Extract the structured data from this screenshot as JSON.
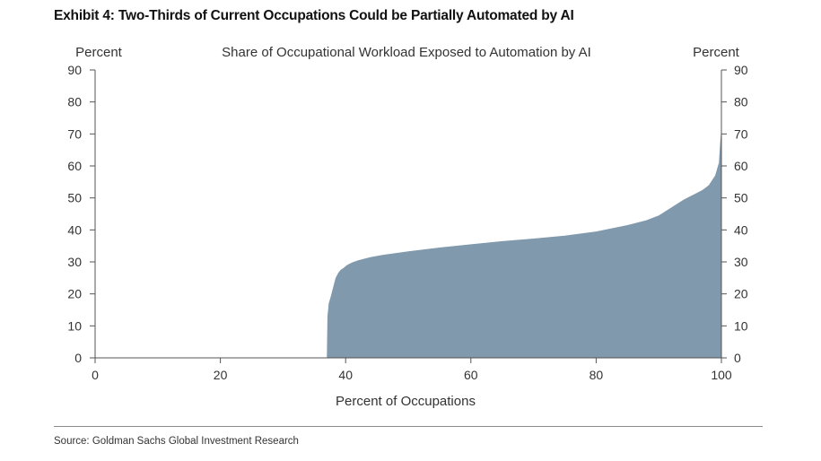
{
  "header": {
    "title": "Exhibit 4: Two-Thirds of Current Occupations Could be Partially Automated by AI"
  },
  "footer": {
    "source": "Source: Goldman Sachs Global Investment Research"
  },
  "colors": {
    "area_fill": "#8099ad",
    "axis": "#555555",
    "text": "#333333",
    "divider": "#8c8c8c"
  },
  "chart_data": {
    "type": "area",
    "title": "Share of Occupational Workload Exposed to Automation by AI",
    "xlabel": "Percent of Occupations",
    "ylabel_left": "Percent",
    "ylabel_right": "Percent",
    "xlim": [
      0,
      100
    ],
    "ylim": [
      0,
      90
    ],
    "x_ticks": [
      0,
      20,
      40,
      60,
      80,
      100
    ],
    "y_ticks": [
      0,
      10,
      20,
      30,
      40,
      50,
      60,
      70,
      80,
      90
    ],
    "grid": false,
    "legend": "none",
    "series": [
      {
        "x": [
          0,
          37,
          37.1,
          37.3,
          37.6,
          38,
          38.4,
          38.8,
          39.2,
          39.6,
          40.2,
          41,
          42,
          44,
          46,
          50,
          55,
          60,
          65,
          70,
          75,
          80,
          85,
          88,
          90,
          92,
          94,
          96,
          97,
          98,
          98.5,
          99,
          99.3,
          99.6,
          99.8,
          100
        ],
        "values": [
          0,
          0,
          13,
          17,
          19,
          22,
          25,
          26.5,
          27.5,
          28,
          29,
          29.8,
          30.5,
          31.5,
          32.2,
          33.3,
          34.5,
          35.5,
          36.5,
          37.3,
          38.2,
          39.5,
          41.5,
          43,
          44.5,
          47,
          49.5,
          51.5,
          52.5,
          54,
          55.5,
          57,
          59,
          61,
          67,
          72
        ]
      }
    ]
  }
}
